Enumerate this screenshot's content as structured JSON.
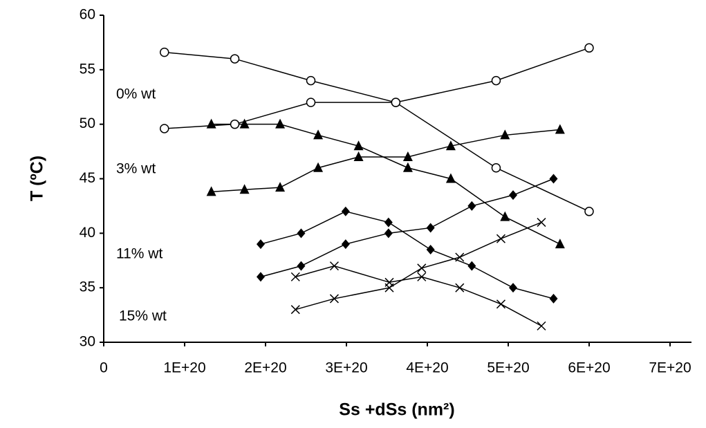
{
  "chart_data": {
    "type": "line",
    "x_label": "Ss +dSs (nm²)",
    "y_label": "T (ºC)",
    "xlim": [
      0,
      7e+20
    ],
    "ylim": [
      30,
      60
    ],
    "xticks": [
      0,
      {
        "value": 1e+20,
        "label": "1E+20"
      },
      {
        "value": 2e+20,
        "label": "2E+20"
      },
      {
        "value": 3e+20,
        "label": "3E+20"
      },
      {
        "value": 4e+20,
        "label": "4E+20"
      },
      {
        "value": 5e+20,
        "label": "5E+20"
      },
      {
        "value": 6e+20,
        "label": "6E+20"
      },
      {
        "value": 7e+20,
        "label": "7E+20"
      }
    ],
    "yticks": [
      30,
      35,
      40,
      45,
      50,
      55,
      60
    ],
    "grid": false,
    "annotations": [
      "0% wt",
      "3% wt",
      "11% wt",
      "15% wt"
    ],
    "series": [
      {
        "marker": "circle",
        "color": "#000000",
        "x": [
          7.5e+19,
          1.62e+20,
          2.56e+20,
          3.61e+20,
          4.85e+20,
          6e+20
        ],
        "values": [
          56.6,
          56.0,
          54.0,
          52.0,
          46.0,
          42.0
        ]
      },
      {
        "marker": "circle",
        "color": "#000000",
        "x": [
          7.5e+19,
          1.62e+20,
          2.56e+20,
          3.61e+20,
          4.85e+20,
          6e+20
        ],
        "values": [
          49.6,
          50.0,
          52.0,
          52.0,
          54.0,
          57.0
        ]
      },
      {
        "marker": "triangle",
        "color": "#000000",
        "x": [
          1.33e+20,
          1.74e+20,
          2.18e+20,
          2.65e+20,
          3.15e+20,
          3.76e+20,
          4.29e+20,
          4.96e+20,
          5.64e+20
        ],
        "values": [
          50.0,
          50.0,
          50.0,
          49.0,
          48.0,
          46.0,
          45.0,
          41.5,
          39.0
        ]
      },
      {
        "marker": "triangle",
        "color": "#000000",
        "x": [
          1.33e+20,
          1.74e+20,
          2.18e+20,
          2.65e+20,
          3.15e+20,
          3.76e+20,
          4.29e+20,
          4.96e+20,
          5.64e+20
        ],
        "values": [
          43.8,
          44.0,
          44.2,
          46.0,
          47.0,
          47.0,
          48.0,
          49.0,
          49.5
        ]
      },
      {
        "marker": "diamond",
        "color": "#000000",
        "x": [
          1.94e+20,
          2.44e+20,
          2.99e+20,
          3.52e+20,
          4.04e+20,
          4.55e+20,
          5.06e+20,
          5.56e+20
        ],
        "values": [
          39.0,
          40.0,
          42.0,
          41.0,
          38.5,
          37.0,
          35.0,
          34.0
        ]
      },
      {
        "marker": "diamond",
        "color": "#000000",
        "x": [
          1.94e+20,
          2.44e+20,
          2.99e+20,
          3.52e+20,
          4.04e+20,
          4.55e+20,
          5.06e+20,
          5.56e+20
        ],
        "values": [
          36.0,
          37.0,
          39.0,
          40.0,
          40.5,
          42.5,
          43.5,
          45.0
        ]
      },
      {
        "marker": "x",
        "color": "#000000",
        "x": [
          2.37e+20,
          2.85e+20,
          3.53e+20,
          3.93e+20,
          4.4e+20,
          4.91e+20,
          5.41e+20
        ],
        "values": [
          36.0,
          37.0,
          35.5,
          36.0,
          35.0,
          33.5,
          31.5
        ]
      },
      {
        "marker": "x",
        "color": "#000000",
        "x": [
          2.37e+20,
          2.85e+20,
          3.53e+20,
          3.93e+20,
          4.4e+20,
          4.91e+20,
          5.41e+20
        ],
        "values": [
          33.0,
          34.0,
          35.0,
          36.8,
          37.8,
          39.5,
          41.0
        ]
      }
    ]
  }
}
